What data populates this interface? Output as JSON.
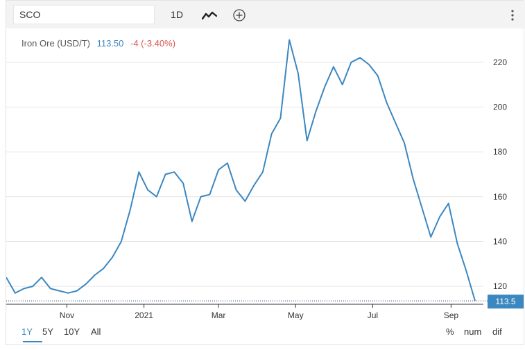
{
  "toolbar": {
    "search_value": "SCO",
    "period_label": "1D",
    "chart_icon": "line-chart-icon",
    "add_icon": "plus-circle-icon",
    "menu_icon": "kebab-menu-icon"
  },
  "legend": {
    "name": "Iron Ore (USD/T)",
    "price": "113.50",
    "change": "-4 (-3.40%)"
  },
  "last_value_label": "113.5",
  "ranges": [
    "1Y",
    "5Y",
    "10Y",
    "All"
  ],
  "active_range": "1Y",
  "scale_options": [
    "%",
    "num",
    "dif"
  ],
  "colors": {
    "series": "#3b87c0",
    "negative": "#d9534f",
    "grid": "#e6e6e6",
    "label_bg": "#3b87c0"
  },
  "chart_data": {
    "type": "line",
    "title": "Iron Ore (USD/T)",
    "xlabel": "",
    "ylabel": "",
    "x_tick_labels": [
      "Nov",
      "2021",
      "Mar",
      "May",
      "Jul",
      "Sep"
    ],
    "y_ticks": [
      120,
      140,
      160,
      180,
      200,
      220
    ],
    "ylim": [
      112,
      232
    ],
    "grid": true,
    "last_value": 113.5,
    "x_date_range": [
      "2020-09-14",
      "2021-09-20"
    ],
    "series": [
      {
        "name": "Iron Ore (USD/T)",
        "x": [
          "2020-09-14",
          "2020-09-21",
          "2020-09-28",
          "2020-10-05",
          "2020-10-12",
          "2020-10-19",
          "2020-10-26",
          "2020-11-02",
          "2020-11-09",
          "2020-11-16",
          "2020-11-23",
          "2020-11-30",
          "2020-12-07",
          "2020-12-14",
          "2020-12-21",
          "2020-12-28",
          "2021-01-04",
          "2021-01-11",
          "2021-01-18",
          "2021-01-25",
          "2021-02-01",
          "2021-02-08",
          "2021-02-15",
          "2021-02-22",
          "2021-03-01",
          "2021-03-08",
          "2021-03-15",
          "2021-03-22",
          "2021-03-29",
          "2021-04-05",
          "2021-04-12",
          "2021-04-19",
          "2021-04-26",
          "2021-05-03",
          "2021-05-10",
          "2021-05-17",
          "2021-05-24",
          "2021-05-31",
          "2021-06-07",
          "2021-06-14",
          "2021-06-21",
          "2021-06-28",
          "2021-07-05",
          "2021-07-12",
          "2021-07-19",
          "2021-07-26",
          "2021-08-02",
          "2021-08-09",
          "2021-08-16",
          "2021-08-23",
          "2021-08-30",
          "2021-09-06",
          "2021-09-13",
          "2021-09-20"
        ],
        "values": [
          124,
          117,
          119,
          120,
          124,
          119,
          118,
          117,
          118,
          121,
          125,
          128,
          133,
          140,
          154,
          171,
          163,
          160,
          170,
          171,
          166,
          149,
          160,
          161,
          172,
          175,
          163,
          158,
          165,
          171,
          188,
          195,
          230,
          215,
          185,
          198,
          209,
          218,
          210,
          220,
          222,
          219,
          214,
          202,
          193,
          184,
          168,
          155,
          142,
          151,
          157,
          139,
          127,
          113.5
        ]
      }
    ]
  }
}
